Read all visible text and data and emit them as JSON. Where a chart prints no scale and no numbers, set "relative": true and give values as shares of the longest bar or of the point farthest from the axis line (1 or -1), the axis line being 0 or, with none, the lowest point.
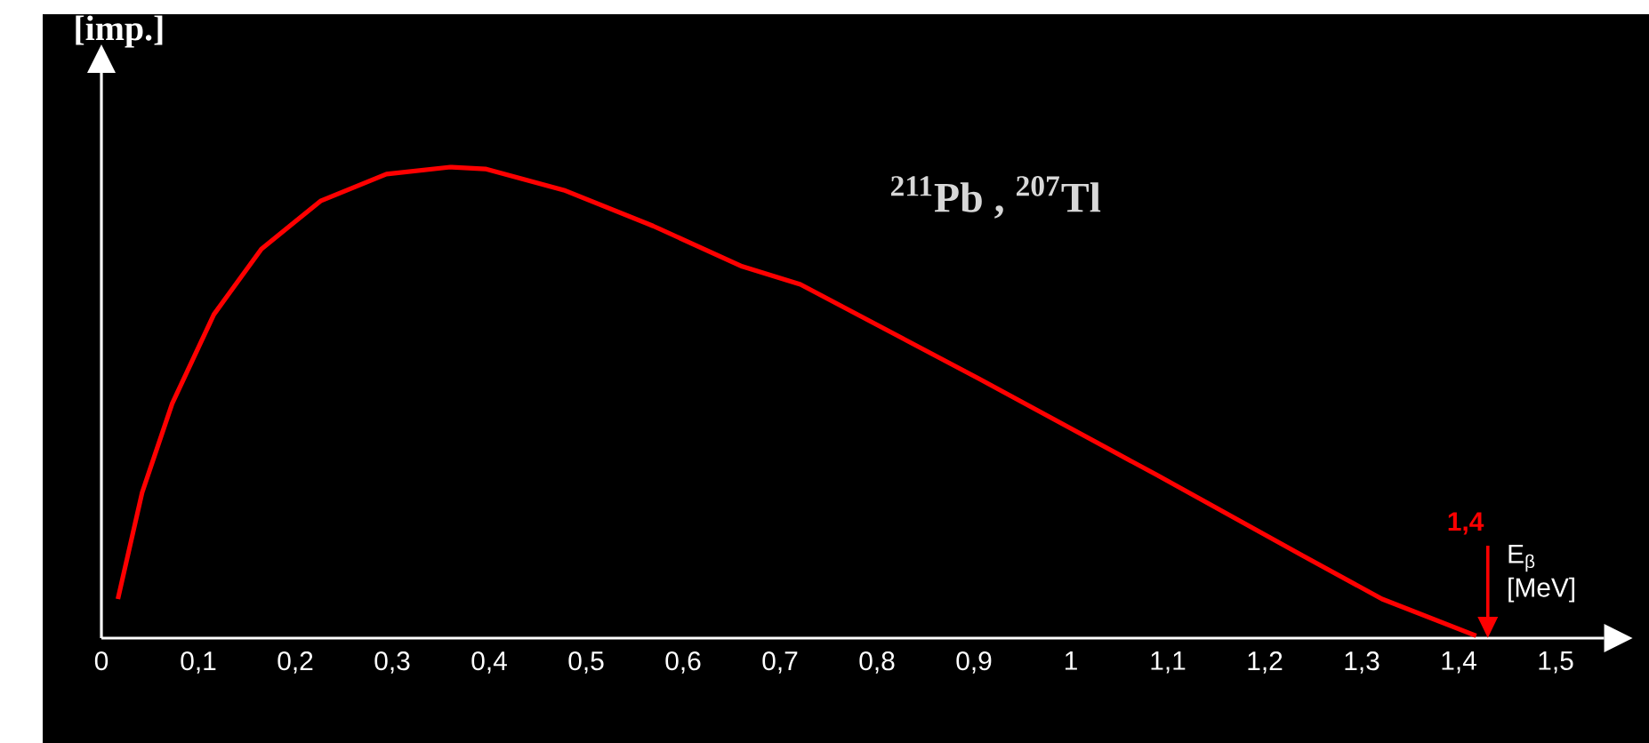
{
  "chart_data": {
    "type": "line",
    "relative": true,
    "xlabel": "E$_{β}$ [MeV]",
    "ylabel": "[imp.]",
    "x": [
      0.017,
      0.042,
      0.073,
      0.116,
      0.165,
      0.226,
      0.294,
      0.36,
      0.396,
      0.477,
      0.569,
      0.661,
      0.721,
      0.905,
      1.088,
      1.24,
      1.321,
      1.418
    ],
    "series": [
      {
        "color": "#ff0000",
        "values": [
          0.083,
          0.309,
          0.498,
          0.687,
          0.826,
          0.928,
          0.985,
          1.0,
          0.996,
          0.951,
          0.875,
          0.789,
          0.751,
          0.551,
          0.347,
          0.174,
          0.083,
          0.005
        ]
      }
    ],
    "xlim": [
      0,
      1.55
    ],
    "xticks": [
      0,
      {
        "value": 0.1,
        "label": "0,1"
      },
      {
        "value": 0.2,
        "label": "0,2"
      },
      {
        "value": 0.3,
        "label": "0,3"
      },
      {
        "value": 0.4,
        "label": "0,4"
      },
      {
        "value": 0.5,
        "label": "0,5"
      },
      {
        "value": 0.6,
        "label": "0,6"
      },
      {
        "value": 0.7,
        "label": "0,7"
      },
      {
        "value": 0.8,
        "label": "0,8"
      },
      {
        "value": 0.9,
        "label": "0,9"
      },
      1,
      {
        "value": 1.1,
        "label": "1,1"
      },
      {
        "value": 1.2,
        "label": "1,2"
      },
      {
        "value": 1.3,
        "label": "1,3"
      },
      {
        "value": 1.4,
        "label": "1,4"
      },
      {
        "value": 1.5,
        "label": "1,5"
      }
    ],
    "annotations": [
      "$^{211}$Pb , $^{207}$Tl",
      "1,4"
    ],
    "marker": "none",
    "line_style": "solid"
  }
}
